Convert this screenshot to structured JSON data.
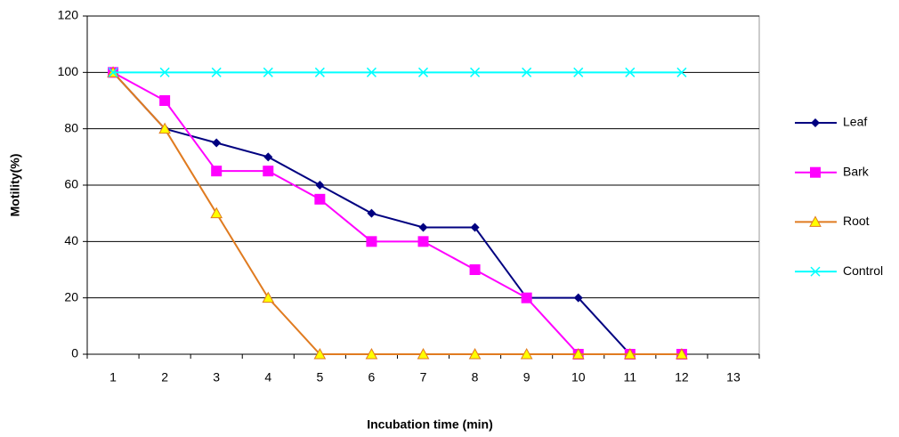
{
  "chart_data": {
    "type": "line",
    "x_label": "Incubation time (min)",
    "y_label": "Motility(%)",
    "categories": [
      "1",
      "2",
      "3",
      "4",
      "5",
      "6",
      "7",
      "8",
      "9",
      "10",
      "11",
      "12",
      "13"
    ],
    "ylim": [
      0,
      120
    ],
    "yticks": [
      0,
      20,
      40,
      60,
      80,
      100,
      120
    ],
    "grid": true,
    "legend": "right",
    "series": [
      {
        "name": "Leaf",
        "color": "#000080",
        "marker": "diamond",
        "values": [
          100,
          80,
          75,
          70,
          60,
          50,
          45,
          45,
          20,
          20,
          0,
          0,
          null
        ]
      },
      {
        "name": "Bark",
        "color": "#ff00ff",
        "marker": "square",
        "values": [
          100,
          90,
          65,
          65,
          55,
          40,
          40,
          30,
          20,
          0,
          0,
          0,
          null
        ]
      },
      {
        "name": "Root",
        "color": "#e07b20",
        "marker": "triangle",
        "values": [
          100,
          80,
          50,
          20,
          0,
          0,
          0,
          0,
          0,
          0,
          0,
          0,
          null
        ]
      },
      {
        "name": "Control",
        "color": "#00ffff",
        "marker": "x",
        "values": [
          100,
          100,
          100,
          100,
          100,
          100,
          100,
          100,
          100,
          100,
          100,
          100,
          null
        ]
      }
    ]
  }
}
